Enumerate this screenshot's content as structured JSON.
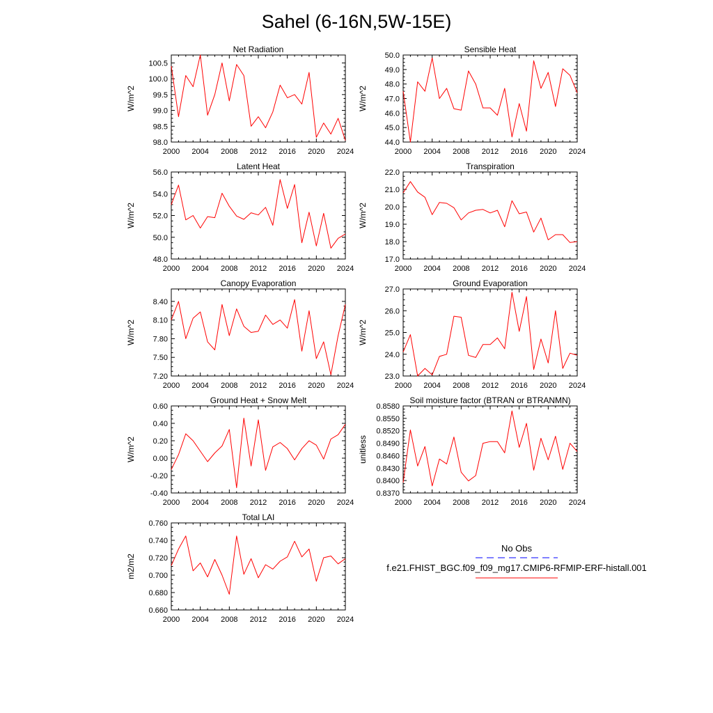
{
  "page_title": "Sahel (6-16N,5W-15E)",
  "legend": {
    "obs_label": "No Obs",
    "model_label": "f.e21.FHIST_BGC.f09_f09_mg17.CMIP6-RFMIP-ERF-histall.001",
    "obs_color": "#0000ff",
    "model_color": "#ff0000",
    "obs_dash": "dashed",
    "model_dash": "solid"
  },
  "chart_data": [
    {
      "type": "line",
      "title": "Net Radiation",
      "ylabel": "W/m^2",
      "xlim": [
        2000,
        2024
      ],
      "ylim": [
        98.0,
        100.75
      ],
      "xticks": [
        2000,
        2004,
        2008,
        2012,
        2016,
        2020,
        2024
      ],
      "xtick_labels": [
        "2000",
        "2004",
        "2008",
        "2012",
        "2016",
        "2020",
        "2024"
      ],
      "yticks": [
        98.0,
        98.5,
        99.0,
        99.5,
        100.0,
        100.5
      ],
      "ytick_labels": [
        "98.0",
        "98.5",
        "99.0",
        "99.5",
        "100.0",
        "100.5"
      ],
      "series": [
        {
          "color": "#ff0000",
          "x": [
            2000,
            2001,
            2002,
            2003,
            2004,
            2005,
            2006,
            2007,
            2008,
            2009,
            2010,
            2011,
            2012,
            2013,
            2014,
            2015,
            2016,
            2017,
            2018,
            2019,
            2020,
            2021,
            2022,
            2023,
            2024
          ],
          "values": [
            100.4,
            98.8,
            100.1,
            99.75,
            100.75,
            98.85,
            99.5,
            100.5,
            99.3,
            100.45,
            100.1,
            98.5,
            98.8,
            98.45,
            98.95,
            99.8,
            99.4,
            99.5,
            99.2,
            100.2,
            98.15,
            98.6,
            98.25,
            98.75,
            98.05
          ]
        }
      ]
    },
    {
      "type": "line",
      "title": "Sensible Heat",
      "ylabel": "W/m^2",
      "xlim": [
        2000,
        2024
      ],
      "ylim": [
        44.0,
        50.0
      ],
      "xticks": [
        2000,
        2004,
        2008,
        2012,
        2016,
        2020,
        2024
      ],
      "xtick_labels": [
        "2000",
        "2004",
        "2008",
        "2012",
        "2016",
        "2020",
        "2024"
      ],
      "yticks": [
        44.0,
        45.0,
        46.0,
        47.0,
        48.0,
        49.0,
        50.0
      ],
      "ytick_labels": [
        "44.0",
        "45.0",
        "46.0",
        "47.0",
        "48.0",
        "49.0",
        "50.0"
      ],
      "series": [
        {
          "color": "#ff0000",
          "x": [
            2000,
            2001,
            2002,
            2003,
            2004,
            2005,
            2006,
            2007,
            2008,
            2009,
            2010,
            2011,
            2012,
            2013,
            2014,
            2015,
            2016,
            2017,
            2018,
            2019,
            2020,
            2021,
            2022,
            2023,
            2024
          ],
          "values": [
            47.5,
            44.0,
            48.15,
            47.5,
            49.8,
            47.0,
            47.7,
            46.3,
            46.2,
            48.9,
            48.0,
            46.35,
            46.35,
            45.85,
            47.7,
            44.35,
            46.65,
            44.75,
            49.6,
            47.7,
            48.8,
            46.45,
            49.05,
            48.6,
            47.4
          ]
        }
      ]
    },
    {
      "type": "line",
      "title": "Latent Heat",
      "ylabel": "W/m^2",
      "xlim": [
        2000,
        2024
      ],
      "ylim": [
        48.0,
        56.0
      ],
      "xticks": [
        2000,
        2004,
        2008,
        2012,
        2016,
        2020,
        2024
      ],
      "xtick_labels": [
        "2000",
        "2004",
        "2008",
        "2012",
        "2016",
        "2020",
        "2024"
      ],
      "yticks": [
        48.0,
        50.0,
        52.0,
        54.0,
        56.0
      ],
      "ytick_labels": [
        "48.0",
        "50.0",
        "52.0",
        "54.0",
        "56.0"
      ],
      "series": [
        {
          "color": "#ff0000",
          "x": [
            2000,
            2001,
            2002,
            2003,
            2004,
            2005,
            2006,
            2007,
            2008,
            2009,
            2010,
            2011,
            2012,
            2013,
            2014,
            2015,
            2016,
            2017,
            2018,
            2019,
            2020,
            2021,
            2022,
            2023,
            2024
          ],
          "values": [
            53.0,
            54.8,
            51.6,
            52.0,
            50.85,
            51.9,
            51.8,
            54.05,
            52.85,
            51.95,
            51.65,
            52.25,
            52.05,
            52.75,
            51.1,
            55.3,
            52.65,
            54.85,
            49.5,
            52.3,
            49.2,
            52.2,
            49.0,
            49.9,
            50.3
          ]
        }
      ]
    },
    {
      "type": "line",
      "title": "Transpiration",
      "ylabel": "W/m^2",
      "xlim": [
        2000,
        2024
      ],
      "ylim": [
        17.0,
        22.0
      ],
      "xticks": [
        2000,
        2004,
        2008,
        2012,
        2016,
        2020,
        2024
      ],
      "xtick_labels": [
        "2000",
        "2004",
        "2008",
        "2012",
        "2016",
        "2020",
        "2024"
      ],
      "yticks": [
        17.0,
        18.0,
        19.0,
        20.0,
        21.0,
        22.0
      ],
      "ytick_labels": [
        "17.0",
        "18.0",
        "19.0",
        "20.0",
        "21.0",
        "22.0"
      ],
      "series": [
        {
          "color": "#ff0000",
          "x": [
            2000,
            2001,
            2002,
            2003,
            2004,
            2005,
            2006,
            2007,
            2008,
            2009,
            2010,
            2011,
            2012,
            2013,
            2014,
            2015,
            2016,
            2017,
            2018,
            2019,
            2020,
            2021,
            2022,
            2023,
            2024
          ],
          "values": [
            20.8,
            21.45,
            20.85,
            20.55,
            19.55,
            20.25,
            20.2,
            19.95,
            19.25,
            19.65,
            19.8,
            19.85,
            19.65,
            19.8,
            18.85,
            20.35,
            19.6,
            19.7,
            18.55,
            19.35,
            18.1,
            18.4,
            18.4,
            17.95,
            18.0
          ]
        }
      ]
    },
    {
      "type": "line",
      "title": "Canopy Evaporation",
      "ylabel": "W/m^2",
      "xlim": [
        2000,
        2024
      ],
      "ylim": [
        7.2,
        8.6
      ],
      "xticks": [
        2000,
        2004,
        2008,
        2012,
        2016,
        2020,
        2024
      ],
      "xtick_labels": [
        "2000",
        "2004",
        "2008",
        "2012",
        "2016",
        "2020",
        "2024"
      ],
      "yticks": [
        7.2,
        7.5,
        7.8,
        8.1,
        8.4
      ],
      "ytick_labels": [
        "7.20",
        "7.50",
        "7.80",
        "8.10",
        "8.40"
      ],
      "series": [
        {
          "color": "#ff0000",
          "x": [
            2000,
            2001,
            2002,
            2003,
            2004,
            2005,
            2006,
            2007,
            2008,
            2009,
            2010,
            2011,
            2012,
            2013,
            2014,
            2015,
            2016,
            2017,
            2018,
            2019,
            2020,
            2021,
            2022,
            2023,
            2024
          ],
          "values": [
            8.1,
            8.4,
            7.8,
            8.13,
            8.23,
            7.75,
            7.62,
            8.35,
            7.85,
            8.28,
            8.0,
            7.9,
            7.92,
            8.18,
            8.03,
            8.1,
            7.97,
            8.43,
            7.6,
            8.25,
            7.48,
            7.75,
            7.22,
            7.85,
            8.35
          ]
        }
      ]
    },
    {
      "type": "line",
      "title": "Ground Evaporation",
      "ylabel": "W/m^2",
      "xlim": [
        2000,
        2024
      ],
      "ylim": [
        23.0,
        27.0
      ],
      "xticks": [
        2000,
        2004,
        2008,
        2012,
        2016,
        2020,
        2024
      ],
      "xtick_labels": [
        "2000",
        "2004",
        "2008",
        "2012",
        "2016",
        "2020",
        "2024"
      ],
      "yticks": [
        23.0,
        24.0,
        25.0,
        26.0,
        27.0
      ],
      "ytick_labels": [
        "23.0",
        "24.0",
        "25.0",
        "26.0",
        "27.0"
      ],
      "series": [
        {
          "color": "#ff0000",
          "x": [
            2000,
            2001,
            2002,
            2003,
            2004,
            2005,
            2006,
            2007,
            2008,
            2009,
            2010,
            2011,
            2012,
            2013,
            2014,
            2015,
            2016,
            2017,
            2018,
            2019,
            2020,
            2021,
            2022,
            2023,
            2024
          ],
          "values": [
            24.1,
            24.9,
            23.0,
            23.35,
            23.05,
            23.9,
            24.0,
            25.75,
            25.7,
            23.95,
            23.85,
            24.45,
            24.45,
            24.75,
            24.25,
            26.85,
            25.05,
            26.65,
            23.3,
            24.7,
            23.6,
            26.0,
            23.35,
            24.05,
            23.95
          ]
        }
      ]
    },
    {
      "type": "line",
      "title": "Ground Heat + Snow Melt",
      "ylabel": "W/m^2",
      "xlim": [
        2000,
        2024
      ],
      "ylim": [
        -0.4,
        0.6
      ],
      "xticks": [
        2000,
        2004,
        2008,
        2012,
        2016,
        2020,
        2024
      ],
      "xtick_labels": [
        "2000",
        "2004",
        "2008",
        "2012",
        "2016",
        "2020",
        "2024"
      ],
      "yticks": [
        -0.4,
        -0.2,
        0.0,
        0.2,
        0.4,
        0.6
      ],
      "ytick_labels": [
        "-0.40",
        "-0.20",
        "0.00",
        "0.20",
        "0.40",
        "0.60"
      ],
      "series": [
        {
          "color": "#ff0000",
          "x": [
            2000,
            2001,
            2002,
            2003,
            2004,
            2005,
            2006,
            2007,
            2008,
            2009,
            2010,
            2011,
            2012,
            2013,
            2014,
            2015,
            2016,
            2017,
            2018,
            2019,
            2020,
            2021,
            2022,
            2023,
            2024
          ],
          "values": [
            -0.13,
            0.04,
            0.28,
            0.2,
            0.08,
            -0.04,
            0.06,
            0.14,
            0.33,
            -0.34,
            0.46,
            -0.09,
            0.44,
            -0.14,
            0.13,
            0.18,
            0.11,
            -0.02,
            0.11,
            0.2,
            0.15,
            -0.01,
            0.22,
            0.27,
            0.39
          ]
        }
      ]
    },
    {
      "type": "line",
      "title": "Soil moisture factor (BTRAN or BTRANMN)",
      "ylabel": "unitless",
      "xlim": [
        2000,
        2024
      ],
      "ylim": [
        0.837,
        0.858
      ],
      "xticks": [
        2000,
        2004,
        2008,
        2012,
        2016,
        2020,
        2024
      ],
      "xtick_labels": [
        "2000",
        "2004",
        "2008",
        "2012",
        "2016",
        "2020",
        "2024"
      ],
      "yticks": [
        0.837,
        0.84,
        0.843,
        0.846,
        0.849,
        0.852,
        0.855,
        0.858
      ],
      "ytick_labels": [
        "0.8370",
        "0.8400",
        "0.8430",
        "0.8460",
        "0.8490",
        "0.8520",
        "0.8550",
        "0.8580"
      ],
      "series": [
        {
          "color": "#ff0000",
          "x": [
            2000,
            2001,
            2002,
            2003,
            2004,
            2005,
            2006,
            2007,
            2008,
            2009,
            2010,
            2011,
            2012,
            2013,
            2014,
            2015,
            2016,
            2017,
            2018,
            2019,
            2020,
            2021,
            2022,
            2023,
            2024
          ],
          "values": [
            0.8395,
            0.8522,
            0.8435,
            0.8482,
            0.8387,
            0.8452,
            0.844,
            0.8505,
            0.842,
            0.8399,
            0.8412,
            0.849,
            0.8494,
            0.8494,
            0.8467,
            0.8568,
            0.848,
            0.8538,
            0.8425,
            0.8502,
            0.845,
            0.8507,
            0.8427,
            0.849,
            0.847
          ]
        }
      ]
    },
    {
      "type": "line",
      "title": "Total LAI",
      "ylabel": "m2/m2",
      "xlim": [
        2000,
        2024
      ],
      "ylim": [
        0.66,
        0.76
      ],
      "xticks": [
        2000,
        2004,
        2008,
        2012,
        2016,
        2020,
        2024
      ],
      "xtick_labels": [
        "2000",
        "2004",
        "2008",
        "2012",
        "2016",
        "2020",
        "2024"
      ],
      "yticks": [
        0.66,
        0.68,
        0.7,
        0.72,
        0.74,
        0.76
      ],
      "ytick_labels": [
        "0.660",
        "0.680",
        "0.700",
        "0.720",
        "0.740",
        "0.760"
      ],
      "series": [
        {
          "color": "#ff0000",
          "x": [
            2000,
            2001,
            2002,
            2003,
            2004,
            2005,
            2006,
            2007,
            2008,
            2009,
            2010,
            2011,
            2012,
            2013,
            2014,
            2015,
            2016,
            2017,
            2018,
            2019,
            2020,
            2021,
            2022,
            2023,
            2024
          ],
          "values": [
            0.711,
            0.73,
            0.745,
            0.705,
            0.714,
            0.698,
            0.718,
            0.7,
            0.678,
            0.745,
            0.701,
            0.719,
            0.697,
            0.712,
            0.707,
            0.716,
            0.721,
            0.739,
            0.721,
            0.73,
            0.693,
            0.72,
            0.722,
            0.713,
            0.719
          ]
        }
      ]
    }
  ]
}
